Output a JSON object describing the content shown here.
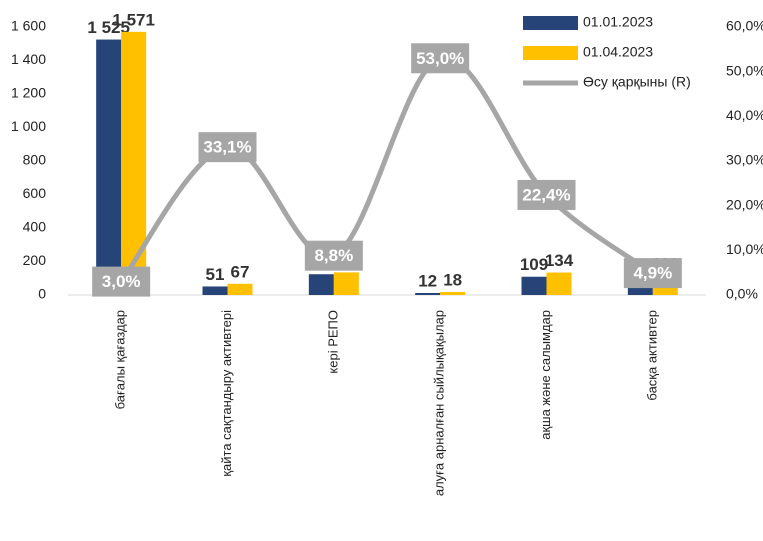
{
  "chart_data": {
    "type": "bar",
    "categories": [
      "бағалы қағаздар",
      "қайта сақтандыру активтері",
      "кері РЕПО",
      "алуға арналған сыйлықақылар",
      "ақша және салымдар",
      "басқа активтер"
    ],
    "series": [
      {
        "name": "01.01.2023",
        "color": "#264478",
        "values": [
          1525,
          51,
          124,
          12,
          109,
          108
        ],
        "value_labels": [
          "1 525",
          "51",
          "124",
          "12",
          "109",
          "108"
        ]
      },
      {
        "name": "01.04.2023",
        "color": "#FFC000",
        "values": [
          1571,
          67,
          135,
          18,
          134,
          113
        ],
        "value_labels": [
          "1 571",
          "67",
          "135",
          "18",
          "134",
          "113"
        ]
      },
      {
        "name": "Өсу қарқыны (R)",
        "color": "#A6A6A6",
        "type": "line",
        "axis": "y2",
        "values": [
          3.0,
          33.1,
          8.8,
          53.0,
          22.4,
          4.9
        ],
        "value_labels": [
          "3,0%",
          "33,1%",
          "8,8%",
          "53,0%",
          "22,4%",
          "4,9%"
        ]
      }
    ],
    "ylim": [
      0,
      1600
    ],
    "yticks": [
      0,
      200,
      400,
      600,
      800,
      {
        "value": 1000,
        "label": "1 000"
      },
      {
        "value": 1200,
        "label": "1 200"
      },
      {
        "value": 1400,
        "label": "1 400"
      },
      {
        "value": 1600,
        "label": "1 600"
      }
    ],
    "y2lim": [
      0,
      60
    ],
    "y2ticks": [
      {
        "value": 0,
        "label": "0,0%"
      },
      {
        "value": 10,
        "label": "10,0%"
      },
      {
        "value": 20,
        "label": "20,0%"
      },
      {
        "value": 30,
        "label": "30,0%"
      },
      {
        "value": 40,
        "label": "40,0%"
      },
      {
        "value": 50,
        "label": "50,0%"
      },
      {
        "value": 60,
        "label": "60,0%"
      }
    ],
    "legend": "top-right"
  }
}
